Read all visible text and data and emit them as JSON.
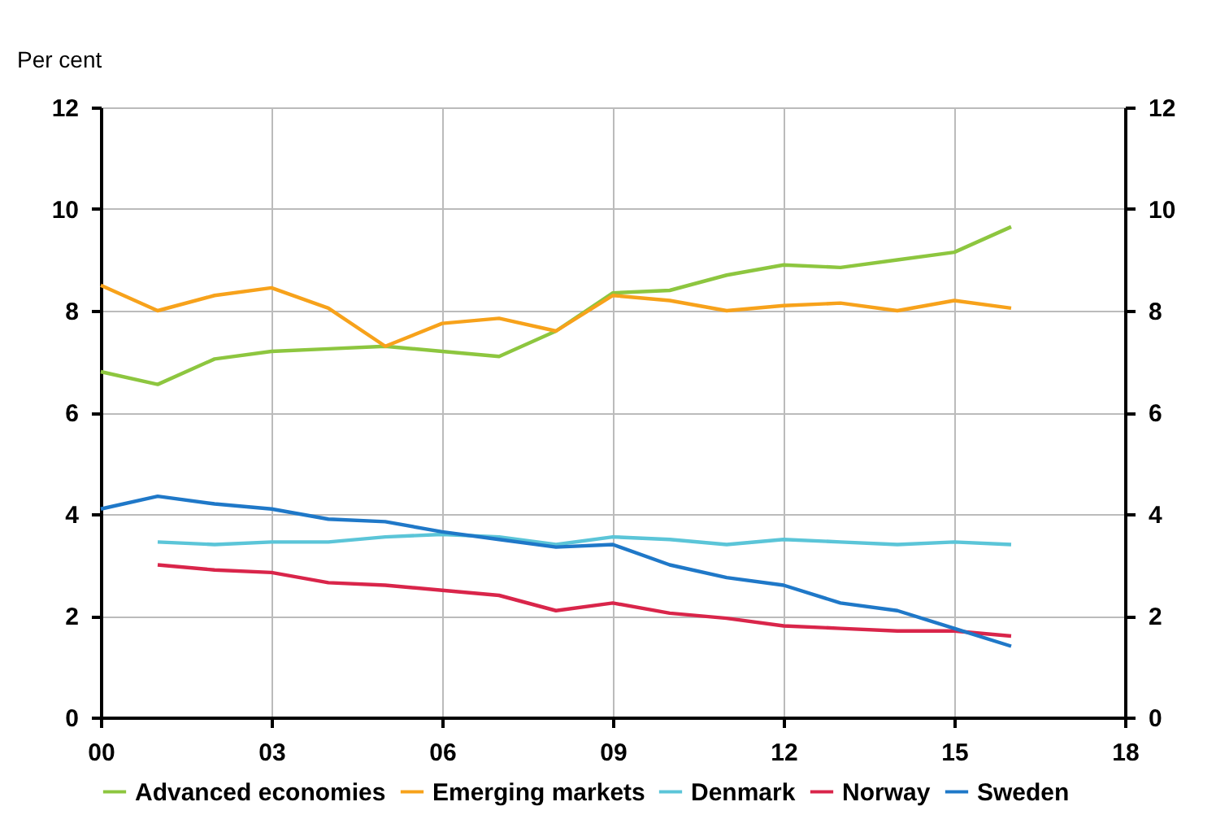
{
  "chart_data": {
    "type": "line",
    "ylabel": "Per cent",
    "xlim": [
      0,
      18
    ],
    "xticks": [
      {
        "value": 0,
        "label": "00"
      },
      {
        "value": 3,
        "label": "03"
      },
      {
        "value": 6,
        "label": "06"
      },
      {
        "value": 9,
        "label": "09"
      },
      12,
      15,
      18
    ],
    "ylim": [
      0,
      12
    ],
    "yticks": [
      0,
      2,
      4,
      6,
      8,
      10,
      12
    ],
    "y2lim": [
      0,
      12
    ],
    "y2ticks": [
      0,
      2,
      4,
      6,
      8,
      10,
      12
    ],
    "grid": true,
    "legend": "bottom",
    "line_style": "solid",
    "marker": "none",
    "series": [
      {
        "name": "Advanced economies",
        "color": "#8dc63f",
        "x": [
          0,
          1,
          2,
          3,
          4,
          5,
          6,
          7,
          8,
          9,
          10,
          11,
          12,
          13,
          14,
          15,
          16
        ],
        "values": [
          6.8,
          6.55,
          7.05,
          7.2,
          7.25,
          7.3,
          7.2,
          7.1,
          7.6,
          8.35,
          8.4,
          8.7,
          8.9,
          8.85,
          9.0,
          9.15,
          9.65
        ]
      },
      {
        "name": "Emerging markets",
        "color": "#f7a21b",
        "x": [
          0,
          1,
          2,
          3,
          4,
          5,
          6,
          7,
          8,
          9,
          10,
          11,
          12,
          13,
          14,
          15,
          16
        ],
        "values": [
          8.5,
          8.0,
          8.3,
          8.45,
          8.05,
          7.3,
          7.75,
          7.85,
          7.6,
          8.3,
          8.2,
          8.0,
          8.1,
          8.15,
          8.0,
          8.2,
          8.05
        ]
      },
      {
        "name": "Denmark",
        "color": "#5bc5d8",
        "x": [
          1,
          2,
          3,
          4,
          5,
          6,
          7,
          8,
          9,
          10,
          11,
          12,
          13,
          14,
          15,
          16
        ],
        "values": [
          3.45,
          3.4,
          3.45,
          3.45,
          3.55,
          3.6,
          3.55,
          3.4,
          3.55,
          3.5,
          3.4,
          3.5,
          3.45,
          3.4,
          3.45,
          3.4
        ]
      },
      {
        "name": "Norway",
        "color": "#d9254a",
        "x": [
          1,
          2,
          3,
          4,
          5,
          6,
          7,
          8,
          9,
          10,
          11,
          12,
          13,
          14,
          15,
          16
        ],
        "values": [
          3.0,
          2.9,
          2.85,
          2.65,
          2.6,
          2.5,
          2.4,
          2.1,
          2.25,
          2.05,
          1.95,
          1.8,
          1.75,
          1.7,
          1.7,
          1.6
        ]
      },
      {
        "name": "Sweden",
        "color": "#1f78c8",
        "x": [
          0,
          1,
          2,
          3,
          4,
          5,
          6,
          7,
          8,
          9,
          10,
          11,
          12,
          13,
          14,
          15,
          16
        ],
        "values": [
          4.1,
          4.35,
          4.2,
          4.1,
          3.9,
          3.85,
          3.65,
          3.5,
          3.35,
          3.4,
          3.0,
          2.75,
          2.6,
          2.25,
          2.1,
          1.75,
          1.4
        ]
      }
    ]
  }
}
